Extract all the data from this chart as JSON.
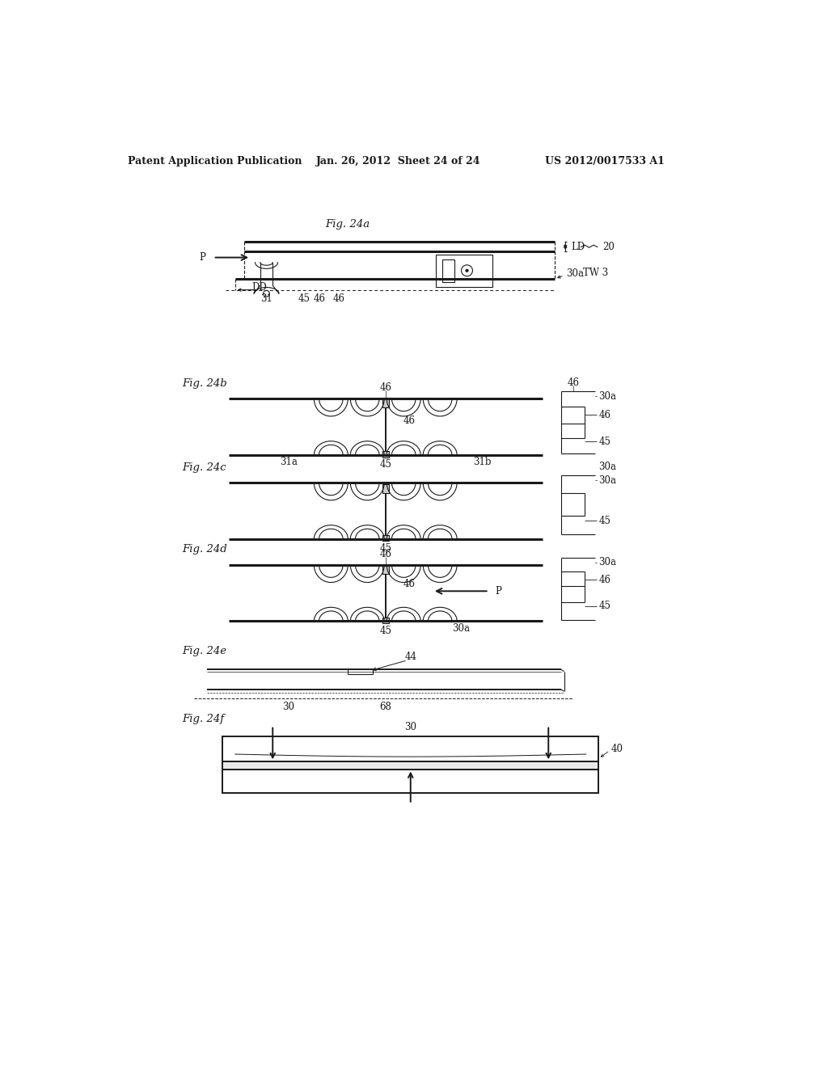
{
  "bg_color": "#ffffff",
  "header_text": "Patent Application Publication",
  "header_date": "Jan. 26, 2012  Sheet 24 of 24",
  "header_patent": "US 2012/0017533 A1",
  "fig24a_label": "Fig. 24a",
  "fig24b_label": "Fig. 24b",
  "fig24c_label": "Fig. 24c",
  "fig24d_label": "Fig. 24d",
  "fig24e_label": "Fig. 24e",
  "fig24f_label": "Fig. 24f",
  "color_dark": "#1a1a1a",
  "lw_thin": 0.8,
  "lw_med": 1.4,
  "lw_thick": 2.2,
  "fs_ref": 8.5,
  "fs_fig": 9.5
}
